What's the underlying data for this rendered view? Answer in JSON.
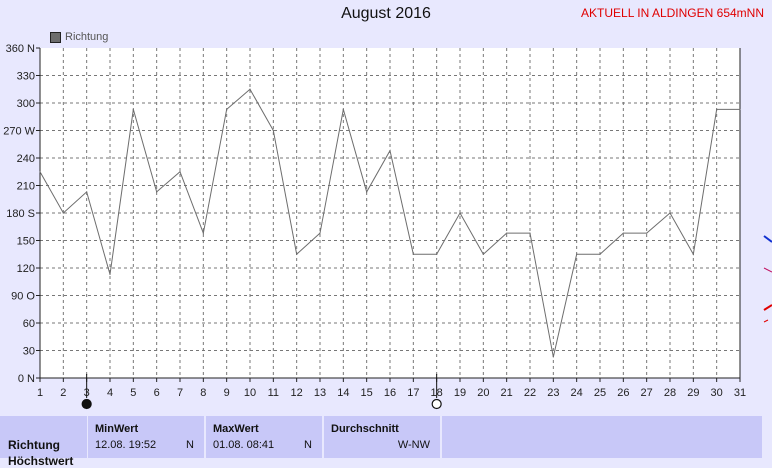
{
  "header": {
    "title": "August 2016",
    "site_label": "AKTUELL IN ALDINGEN 654mNN"
  },
  "legend": {
    "label": "Richtung"
  },
  "chart_data": {
    "type": "line",
    "title": "August 2016",
    "xlabel": "",
    "ylabel": "",
    "x": [
      1,
      2,
      3,
      4,
      5,
      6,
      7,
      8,
      9,
      10,
      11,
      12,
      13,
      14,
      15,
      16,
      17,
      18,
      19,
      20,
      21,
      22,
      23,
      24,
      25,
      26,
      27,
      28,
      29,
      30,
      31
    ],
    "xlim": [
      1,
      31
    ],
    "ylim": [
      0,
      360
    ],
    "y_ticks": [
      {
        "value": 0,
        "label": "0 N"
      },
      {
        "value": 30,
        "label": "30"
      },
      {
        "value": 60,
        "label": "60"
      },
      {
        "value": 90,
        "label": "90 O"
      },
      {
        "value": 120,
        "label": "120"
      },
      {
        "value": 150,
        "label": "150"
      },
      {
        "value": 180,
        "label": "180 S"
      },
      {
        "value": 210,
        "label": "210"
      },
      {
        "value": 240,
        "label": "240"
      },
      {
        "value": 270,
        "label": "270 W"
      },
      {
        "value": 300,
        "label": "300"
      },
      {
        "value": 330,
        "label": "330"
      },
      {
        "value": 360,
        "label": "360 N"
      }
    ],
    "grid": true,
    "series": [
      {
        "name": "Richtung",
        "color": "#6d6d6d",
        "points": [
          [
            1,
            225
          ],
          [
            2,
            180
          ],
          [
            3,
            203
          ],
          [
            4,
            113
          ],
          [
            5,
            293
          ],
          [
            6,
            203
          ],
          [
            7,
            225
          ],
          [
            8,
            158
          ],
          [
            9,
            293
          ],
          [
            10,
            315
          ],
          [
            11,
            270
          ],
          [
            12,
            135
          ],
          [
            13,
            158
          ],
          [
            14,
            293
          ],
          [
            15,
            203
          ],
          [
            16,
            248
          ],
          [
            17,
            135
          ],
          [
            18,
            135
          ],
          [
            19,
            180
          ],
          [
            20,
            135
          ],
          [
            21,
            158
          ],
          [
            22,
            158
          ],
          [
            23,
            23
          ],
          [
            24,
            135
          ],
          [
            25,
            135
          ],
          [
            26,
            158
          ],
          [
            27,
            158
          ],
          [
            28,
            180
          ],
          [
            29,
            135
          ],
          [
            30,
            293
          ],
          [
            31,
            293
          ]
        ]
      }
    ],
    "moon_markers": [
      {
        "day": 3,
        "phase": "new-moon"
      },
      {
        "day": 18,
        "phase": "full-moon"
      }
    ]
  },
  "stats": {
    "row_label": "Richtung",
    "row_label2": "Höchstwert",
    "min": {
      "title": "MinWert",
      "value": "12.08.  19:52",
      "unit": "N"
    },
    "max": {
      "title": "MaxWert",
      "value": "01.08.  08:41",
      "unit": "N"
    },
    "avg": {
      "title": "Durchschnitt",
      "value": "W-NW"
    }
  },
  "colors": {
    "background": "#e8e8fe",
    "plot": "#ffffff",
    "line": "#6d6d6d",
    "accent": "#e00000",
    "stat_cell": "#c8c8f8"
  }
}
